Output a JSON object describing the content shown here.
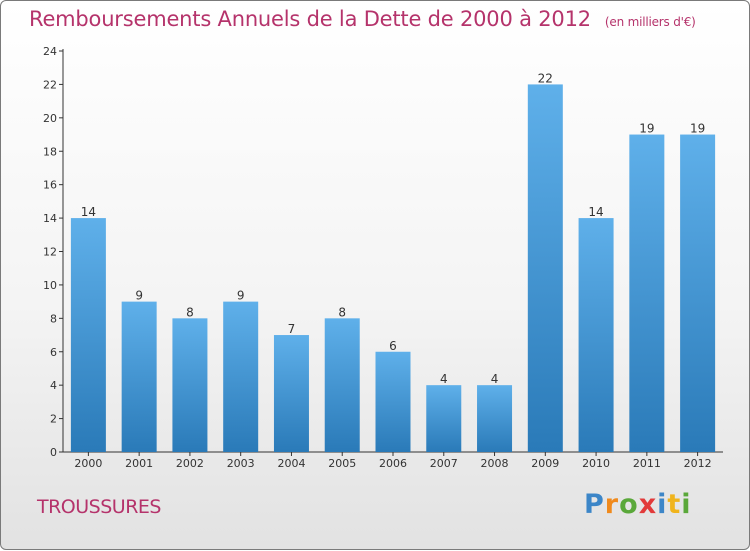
{
  "chart_data": {
    "type": "bar",
    "title": "Remboursements Annuels de la Dette de 2000 à 2012",
    "subtitle": "(en milliers d'€)",
    "categories": [
      "2000",
      "2001",
      "2002",
      "2003",
      "2004",
      "2005",
      "2006",
      "2007",
      "2008",
      "2009",
      "2010",
      "2011",
      "2012"
    ],
    "values": [
      14,
      9,
      8,
      9,
      7,
      8,
      6,
      4,
      4,
      22,
      14,
      19,
      19
    ],
    "data_labels": [
      "14",
      "9",
      "8",
      "9",
      "7",
      "8",
      "6",
      "4",
      "4",
      "22",
      "14",
      "19",
      "19"
    ],
    "yticks": [
      0,
      2,
      4,
      6,
      8,
      10,
      12,
      14,
      16,
      18,
      20,
      22,
      24
    ],
    "ylim": [
      0,
      24
    ],
    "xlabel": "",
    "ylabel": "",
    "grid": false,
    "bar_color_light": "#5fb0ea",
    "bar_color_dark": "#2a7ab8"
  },
  "commune": "TROUSSURES",
  "logo": {
    "text": "Proxiti",
    "letters": [
      {
        "ch": "P",
        "color": "#3c86c8"
      },
      {
        "ch": "r",
        "color": "#f08a1c"
      },
      {
        "ch": "o",
        "color": "#5aa83a"
      },
      {
        "ch": "x",
        "color": "#e23a3a"
      },
      {
        "ch": "i",
        "color": "#3c86c8"
      },
      {
        "ch": "t",
        "color": "#f0b41c"
      },
      {
        "ch": "i",
        "color": "#5aa83a"
      }
    ]
  }
}
